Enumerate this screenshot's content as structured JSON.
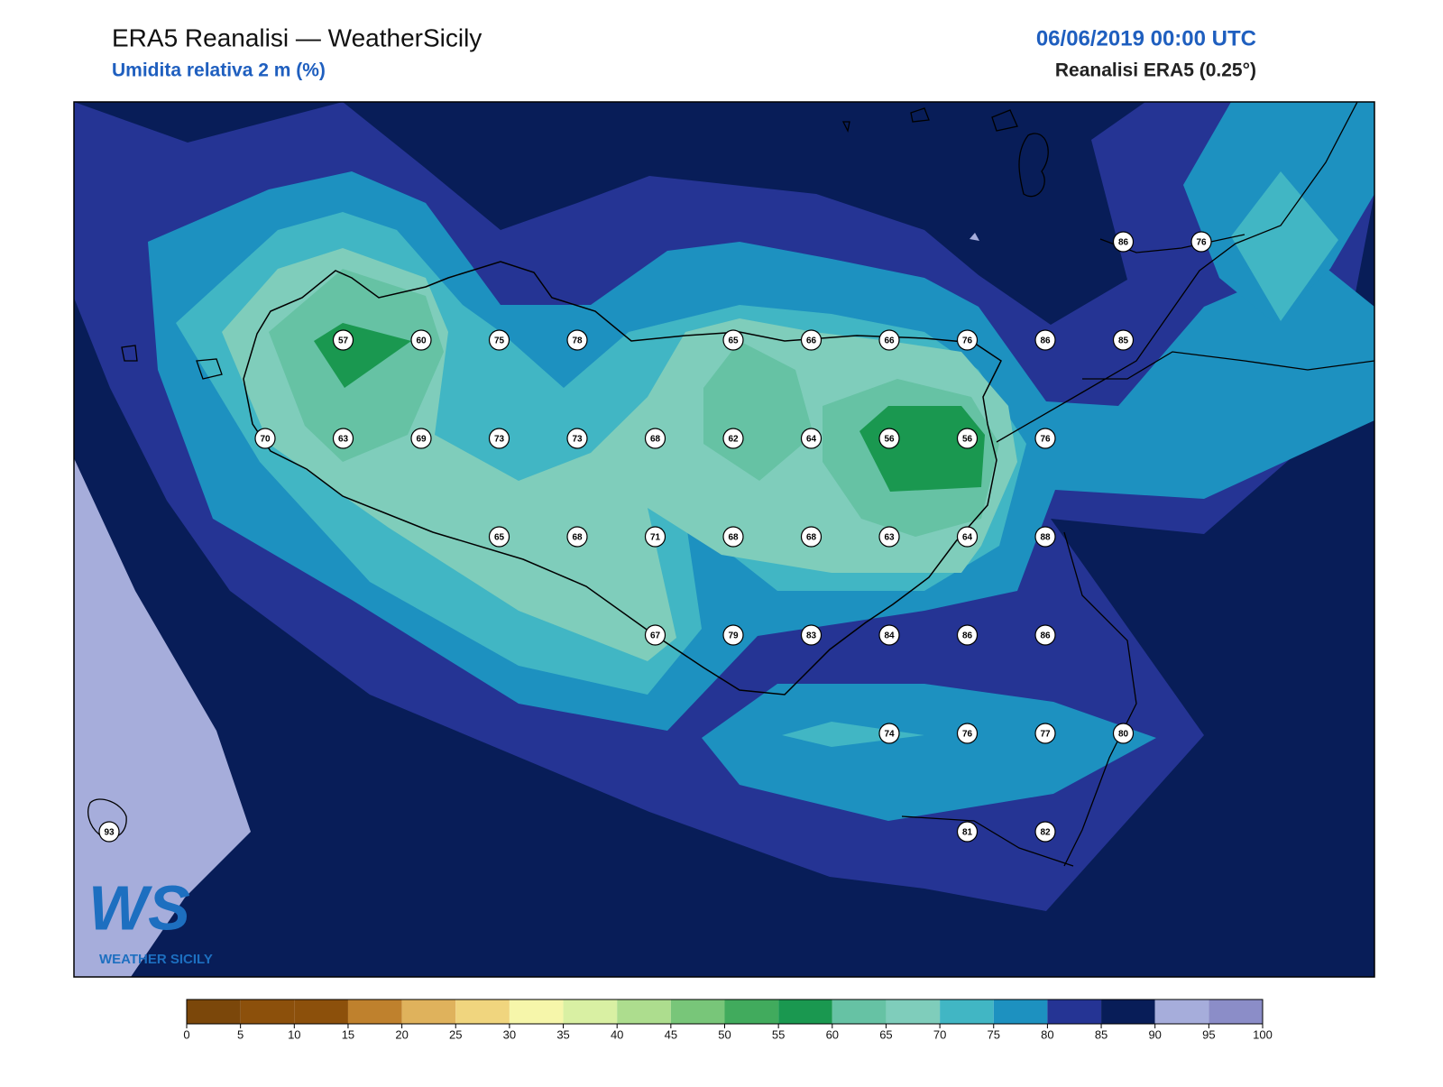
{
  "header": {
    "title": "ERA5 Reanalisi — WeatherSicily",
    "subtitle": "Umidita relativa 2 m (%)",
    "date": "06/06/2019 00:00 UTC",
    "source": "Reanalisi ERA5 (0.25°)"
  },
  "stations": [
    86,
    76,
    57,
    60,
    75,
    78,
    65,
    66,
    66,
    76,
    86,
    85,
    70,
    63,
    69,
    73,
    73,
    68,
    62,
    64,
    56,
    56,
    76,
    65,
    68,
    71,
    68,
    68,
    63,
    64,
    88,
    67,
    79,
    83,
    84,
    86,
    86,
    74,
    76,
    77,
    80,
    93,
    81,
    82
  ],
  "colorbar": {
    "ticks": [
      0,
      5,
      10,
      15,
      20,
      25,
      30,
      35,
      40,
      45,
      50,
      55,
      60,
      65,
      70,
      75,
      80,
      85,
      90,
      95,
      100
    ],
    "colors": [
      "#7b470a",
      "#8c500b",
      "#8c500b",
      "#bf812d",
      "#dfb25c",
      "#f0d57e",
      "#f6f6aa",
      "#d9f0a3",
      "#addd8e",
      "#78c679",
      "#41ab5d",
      "#1a9850",
      "#66c2a4",
      "#7fcdbb",
      "#41b6c4",
      "#1d91c0",
      "#253494",
      "#081d58",
      "#a6addb",
      "#8b8dc8"
    ]
  },
  "logo": {
    "letters": "WS",
    "name": "WEATHER SICILY"
  }
}
